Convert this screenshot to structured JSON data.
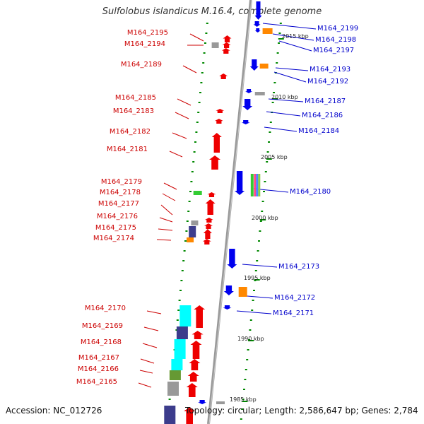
{
  "title": "Sulfolobus islandicus M.16.4, complete genome",
  "accession": "Accession: NC_012726",
  "summary": "Topology: circular; Length: 2,586,647 bp; Genes: 2,784",
  "colors": {
    "forward_gene": "#ee0000",
    "reverse_gene": "#0000ee",
    "left_label": "#cc0000",
    "right_label": "#0000cc",
    "backbone": "#999999",
    "tick_mark": "#008800",
    "cyan_feature": "#00ffff",
    "navy_feature": "#3c3c8c",
    "orange_feature": "#ff8800",
    "green_feature": "#33cc33",
    "olive_feature": "#669933"
  },
  "left_labels": [
    "M164_2195",
    "M164_2194",
    "M164_2189",
    "M164_2185",
    "M164_2183",
    "M164_2182",
    "M164_2181",
    "M164_2179",
    "M164_2178",
    "M164_2177",
    "M164_2176",
    "M164_2175",
    "M164_2174",
    "M164_2170",
    "M164_2169",
    "M164_2168",
    "M164_2167",
    "M164_2166",
    "M164_2165"
  ],
  "right_labels": [
    "M164_2199",
    "M164_2198",
    "M164_2197",
    "M164_2193",
    "M164_2192",
    "M164_2187",
    "M164_2186",
    "M164_2184",
    "M164_2180",
    "M164_2173",
    "M164_2172",
    "M164_2171"
  ],
  "ticks": [
    "2015 kbp",
    "2010 kbp",
    "2005 kbp",
    "2000 kbp",
    "1995 kbp",
    "1990 kbp",
    "1985 kbp"
  ]
}
